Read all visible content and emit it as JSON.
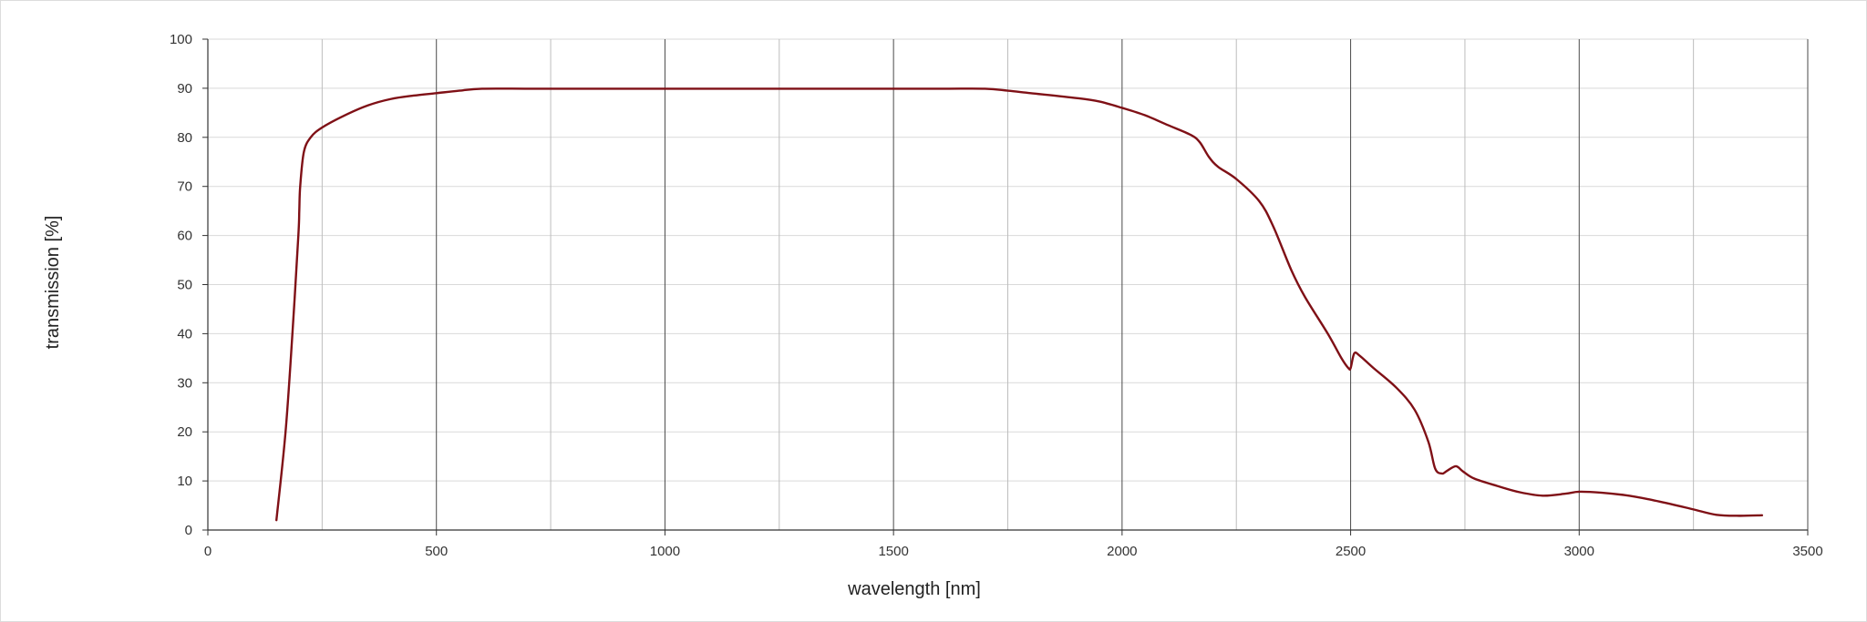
{
  "chart_data": {
    "type": "line",
    "title": "",
    "xlabel": "wavelength [nm]",
    "ylabel": "transmission [%]",
    "xlim": [
      0,
      3500
    ],
    "ylim": [
      0,
      100
    ],
    "x_ticks": [
      0,
      500,
      1000,
      1500,
      2000,
      2500,
      3000,
      3500
    ],
    "x_tick_labels": [
      "0",
      "500",
      "1000",
      "1500",
      "2000",
      "2500",
      "3000",
      "3500"
    ],
    "y_ticks": [
      0,
      10,
      20,
      30,
      40,
      50,
      60,
      70,
      80,
      90,
      100
    ],
    "y_tick_labels": [
      "0",
      "10",
      "20",
      "30",
      "40",
      "50",
      "60",
      "70",
      "80",
      "90",
      "100"
    ],
    "x_minor_gridlines": [
      250,
      750,
      1250,
      1750,
      2250,
      2750,
      3250
    ],
    "grid": true,
    "legend": "none",
    "series": [
      {
        "color": "#7f1016",
        "points": [
          [
            150,
            2
          ],
          [
            170,
            20
          ],
          [
            185,
            40
          ],
          [
            198,
            60
          ],
          [
            200,
            65
          ],
          [
            202,
            70
          ],
          [
            210,
            77
          ],
          [
            225,
            80
          ],
          [
            250,
            82
          ],
          [
            300,
            84.5
          ],
          [
            350,
            86.5
          ],
          [
            400,
            87.8
          ],
          [
            450,
            88.5
          ],
          [
            500,
            89
          ],
          [
            550,
            89.5
          ],
          [
            600,
            89.9
          ],
          [
            700,
            89.9
          ],
          [
            800,
            89.9
          ],
          [
            1000,
            89.9
          ],
          [
            1200,
            89.9
          ],
          [
            1400,
            89.9
          ],
          [
            1600,
            89.9
          ],
          [
            1700,
            89.9
          ],
          [
            1750,
            89.5
          ],
          [
            1800,
            89
          ],
          [
            1900,
            88
          ],
          [
            1950,
            87.3
          ],
          [
            2000,
            86
          ],
          [
            2050,
            84.5
          ],
          [
            2100,
            82.5
          ],
          [
            2150,
            80.5
          ],
          [
            2170,
            79
          ],
          [
            2190,
            76
          ],
          [
            2210,
            74
          ],
          [
            2250,
            71.5
          ],
          [
            2300,
            67
          ],
          [
            2330,
            62
          ],
          [
            2370,
            53
          ],
          [
            2400,
            47.5
          ],
          [
            2450,
            40
          ],
          [
            2480,
            35
          ],
          [
            2495,
            33
          ],
          [
            2500,
            33
          ],
          [
            2508,
            36
          ],
          [
            2520,
            35.5
          ],
          [
            2550,
            33
          ],
          [
            2600,
            29
          ],
          [
            2640,
            24.5
          ],
          [
            2670,
            18
          ],
          [
            2685,
            12.5
          ],
          [
            2700,
            11.5
          ],
          [
            2710,
            12
          ],
          [
            2730,
            13
          ],
          [
            2745,
            12
          ],
          [
            2770,
            10.5
          ],
          [
            2820,
            9
          ],
          [
            2870,
            7.7
          ],
          [
            2920,
            7
          ],
          [
            2970,
            7.4
          ],
          [
            3000,
            7.8
          ],
          [
            3050,
            7.6
          ],
          [
            3100,
            7.1
          ],
          [
            3150,
            6.3
          ],
          [
            3200,
            5.3
          ],
          [
            3250,
            4.2
          ],
          [
            3300,
            3.1
          ],
          [
            3350,
            2.9
          ],
          [
            3400,
            3
          ]
        ]
      }
    ]
  }
}
